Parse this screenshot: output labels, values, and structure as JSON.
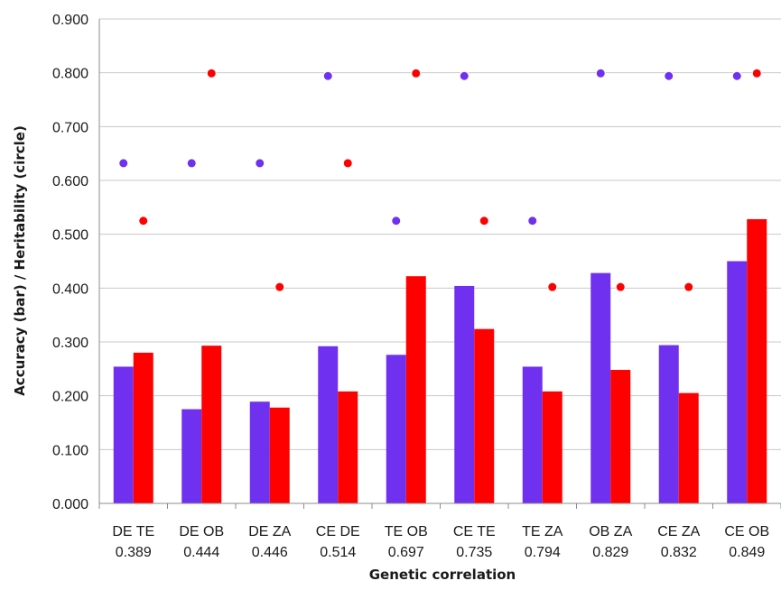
{
  "chart_data": {
    "type": "bar",
    "xlabel": "Genetic correlation",
    "ylabel": "Accuracy (bar) / Heritability (circle)",
    "ylim": [
      0,
      0.9
    ],
    "ytick_step": 0.1,
    "ytick_labels": [
      "0.000",
      "0.100",
      "0.200",
      "0.300",
      "0.400",
      "0.500",
      "0.600",
      "0.700",
      "0.800",
      "0.900"
    ],
    "grid": true,
    "legend": "none",
    "categories": [
      {
        "name": "DE TE",
        "value": "0.389"
      },
      {
        "name": "DE OB",
        "value": "0.444"
      },
      {
        "name": "DE ZA",
        "value": "0.446"
      },
      {
        "name": "CE DE",
        "value": "0.514"
      },
      {
        "name": "TE OB",
        "value": "0.697"
      },
      {
        "name": "CE TE",
        "value": "0.735"
      },
      {
        "name": "TE ZA",
        "value": "0.794"
      },
      {
        "name": "OB ZA",
        "value": "0.829"
      },
      {
        "name": "CE ZA",
        "value": "0.832"
      },
      {
        "name": "CE OB",
        "value": "0.849"
      }
    ],
    "series": [
      {
        "color": "#7030f0",
        "accuracy": [
          0.254,
          0.175,
          0.189,
          0.292,
          0.276,
          0.404,
          0.254,
          0.428,
          0.294,
          0.45
        ],
        "heritability": [
          0.632,
          0.632,
          0.632,
          0.794,
          0.525,
          0.794,
          0.525,
          0.799,
          0.794,
          0.794
        ]
      },
      {
        "color": "#ff0000",
        "accuracy": [
          0.28,
          0.293,
          0.178,
          0.208,
          0.422,
          0.324,
          0.208,
          0.248,
          0.205,
          0.528
        ],
        "heritability": [
          0.525,
          0.799,
          0.402,
          0.632,
          0.799,
          0.525,
          0.402,
          0.402,
          0.402,
          0.799
        ]
      }
    ]
  }
}
